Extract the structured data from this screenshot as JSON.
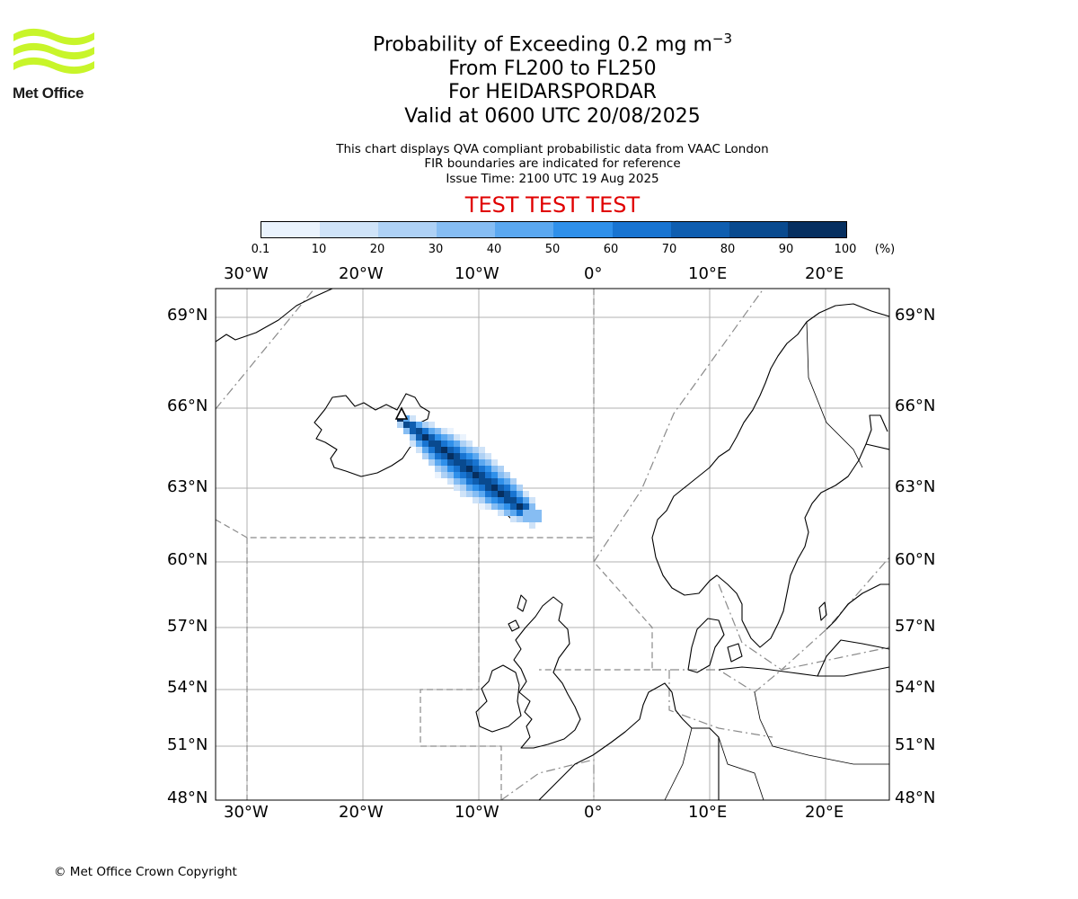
{
  "logo": {
    "text": "Met Office",
    "colors": {
      "waves": "#c8f52a",
      "text": "#1a1a1a"
    }
  },
  "title": {
    "main": "Probability of Exceeding 0.2 mg m",
    "main_sup": "−3",
    "levels": "From FL200 to FL250",
    "volcano": "For HEIDARSPORDAR",
    "valid": "Valid at 0600 UTC 20/08/2025"
  },
  "notes": {
    "line1": "This chart displays QVA compliant probabilistic data from VAAC London",
    "line2": "FIR boundaries are indicated for reference",
    "line3": "Issue Time: 2100 UTC 19 Aug 2025"
  },
  "test_banner": {
    "text": "TEST TEST TEST",
    "color": "#e00000"
  },
  "colorbar": {
    "ticks": [
      "0.1",
      "10",
      "20",
      "30",
      "40",
      "50",
      "60",
      "70",
      "80",
      "90",
      "100"
    ],
    "unit": "(%)",
    "colors": [
      "#eaf3fd",
      "#cfe3f8",
      "#aed1f5",
      "#86bdf3",
      "#5ba8f0",
      "#2f90ea",
      "#1874d1",
      "#0f5eb0",
      "#094a8f",
      "#062f60"
    ]
  },
  "map": {
    "lon_labels": [
      "30°W",
      "20°W",
      "10°W",
      "0°",
      "10°E",
      "20°E"
    ],
    "lat_labels": [
      "69°N",
      "66°N",
      "63°N",
      "60°N",
      "57°N",
      "54°N",
      "51°N",
      "48°N"
    ],
    "volcano_marker": "volcano-triangle"
  },
  "copyright": "© Met Office Crown Copyright"
}
